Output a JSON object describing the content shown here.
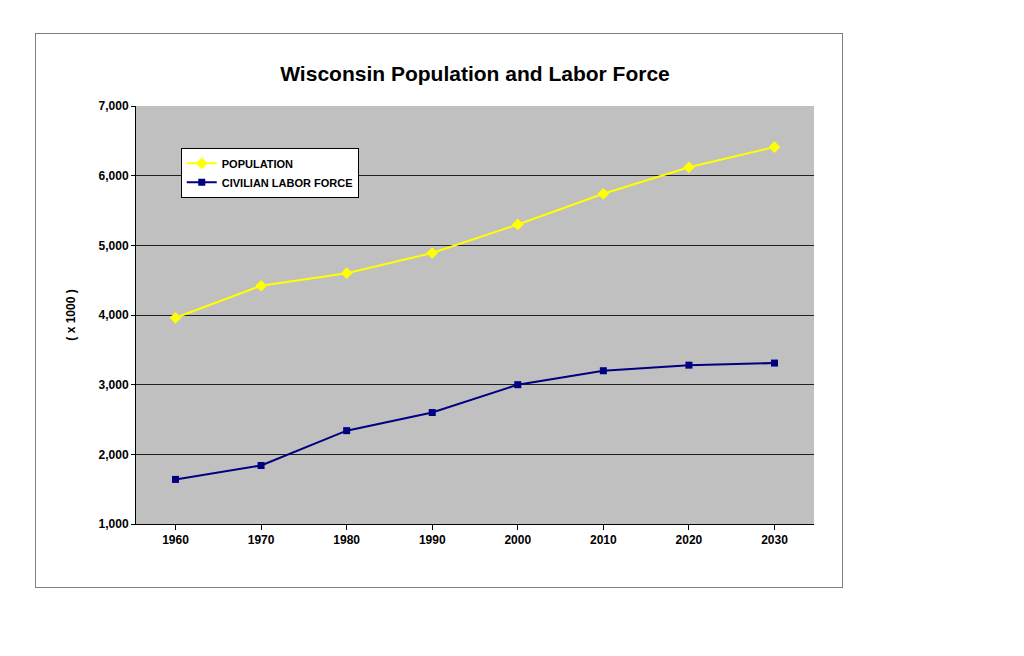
{
  "chart_data": {
    "type": "line",
    "title": "Wisconsin Population and Labor Force",
    "y_label": "( x 1000 )",
    "categories": [
      "1960",
      "1970",
      "1980",
      "1990",
      "2000",
      "2010",
      "2020",
      "2030"
    ],
    "series": [
      {
        "name": "POPULATION",
        "color": "#ffff00",
        "marker": "diamond",
        "line_style": "solid",
        "values": [
          3960,
          4420,
          4600,
          4890,
          5300,
          5740,
          6120,
          6410
        ]
      },
      {
        "name": "CIVILIAN LABOR FORCE",
        "color": "#000080",
        "marker": "square",
        "line_style": "solid",
        "values": [
          1640,
          1840,
          2340,
          2600,
          3000,
          3200,
          3280,
          3310
        ]
      }
    ],
    "ylim": [
      1000,
      7000
    ],
    "yticks": [
      {
        "value": 1000,
        "label": "1,000"
      },
      {
        "value": 2000,
        "label": "2,000"
      },
      {
        "value": 3000,
        "label": "3,000"
      },
      {
        "value": 4000,
        "label": "4,000"
      },
      {
        "value": 5000,
        "label": "5,000"
      },
      {
        "value": 6000,
        "label": "6,000"
      },
      {
        "value": 7000,
        "label": "7,000"
      }
    ],
    "grid": true,
    "legend": "upper left"
  }
}
